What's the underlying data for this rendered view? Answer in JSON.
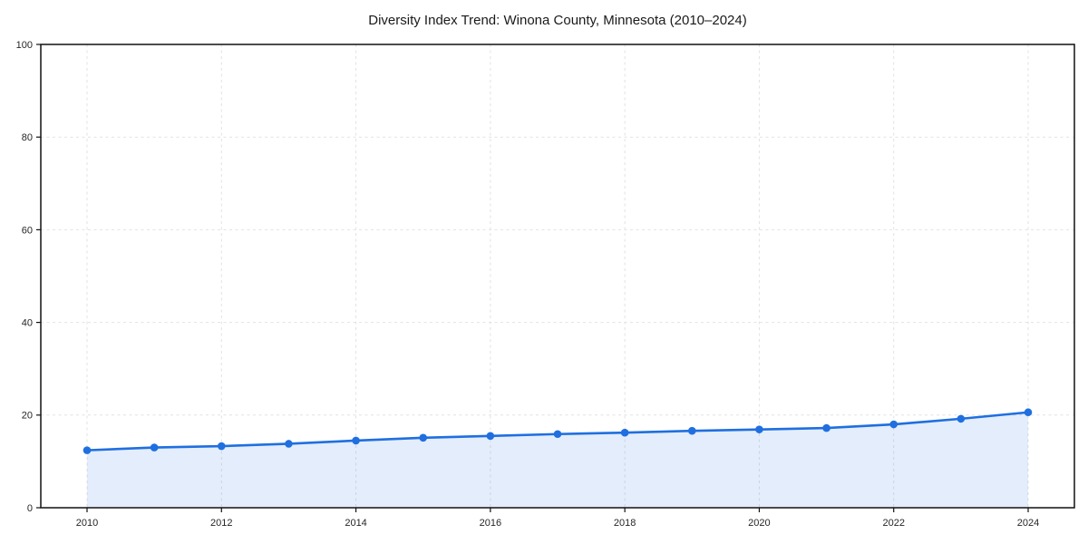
{
  "chart_data": {
    "type": "line",
    "title": "Diversity Index Trend: Winona County, Minnesota (2010–2024)",
    "x": [
      2010,
      2011,
      2012,
      2013,
      2014,
      2015,
      2016,
      2017,
      2018,
      2019,
      2020,
      2021,
      2022,
      2023,
      2024
    ],
    "values": [
      12.4,
      13.0,
      13.3,
      13.8,
      14.5,
      15.1,
      15.5,
      15.9,
      16.2,
      16.6,
      16.9,
      17.2,
      18.0,
      19.2,
      20.6
    ],
    "xlabel": "",
    "ylabel": "",
    "xlim_years": [
      2010,
      2024
    ],
    "ylim": [
      0,
      100
    ],
    "xticks": [
      2010,
      2012,
      2014,
      2016,
      2018,
      2020,
      2022,
      2024
    ],
    "yticks": [
      0,
      20,
      40,
      60,
      80,
      100
    ],
    "grid": true,
    "grid_style": "dashed",
    "legend": false,
    "area_fill": true,
    "marker": "circle",
    "colors": {
      "line": "#1f6fe0",
      "marker": "#1f6fe0",
      "area": "rgba(31,111,224,0.12)",
      "gridline": "#e2e2e2",
      "spine": "#111111",
      "tick_text": "#262626",
      "background": "#ffffff"
    }
  }
}
